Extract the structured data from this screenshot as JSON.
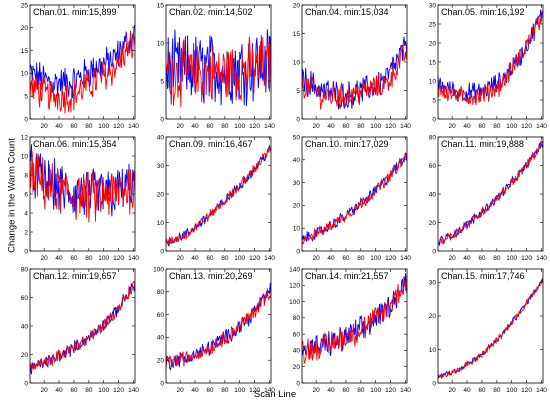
{
  "figure": {
    "ylabel": "Change in the Warm Count",
    "xlabel": "Scan Line"
  },
  "colors": {
    "series_a": "#0000ff",
    "series_b": "#ff0000"
  },
  "chart_data": [
    {
      "type": "line",
      "title": "Chan.01. min:15,899",
      "xlim": [
        1,
        142
      ],
      "ylim": [
        0,
        25
      ],
      "yticks": [
        0,
        5,
        10,
        15,
        20,
        25
      ],
      "series": [
        {
          "color": "#0000ff",
          "shape": "ushape",
          "values": [
            10,
            8,
            8,
            11,
            13,
            19
          ]
        },
        {
          "color": "#ff0000",
          "shape": "ushape",
          "values": [
            7,
            5,
            5,
            8,
            11,
            17
          ]
        }
      ],
      "noise": [
        3.2,
        3.2
      ]
    },
    {
      "type": "line",
      "title": "Chan.02. min:14,502",
      "xlim": [
        1,
        142
      ],
      "ylim": [
        0,
        15
      ],
      "yticks": [
        0,
        5,
        10,
        15
      ],
      "series": [
        {
          "color": "#0000ff",
          "shape": "flat",
          "values": [
            6.5,
            6.5,
            6.5,
            6.5,
            7,
            7.5
          ]
        },
        {
          "color": "#ff0000",
          "shape": "flat",
          "values": [
            6,
            6,
            6,
            6,
            6.5,
            7
          ]
        }
      ],
      "noise": [
        4.2,
        3.6
      ]
    },
    {
      "type": "line",
      "title": "Chan.04. min:15,034",
      "xlim": [
        1,
        142
      ],
      "ylim": [
        0,
        20
      ],
      "yticks": [
        0,
        5,
        10,
        15,
        20
      ],
      "series": [
        {
          "color": "#0000ff",
          "shape": "ushape",
          "values": [
            7,
            5,
            4,
            5,
            7,
            13
          ]
        },
        {
          "color": "#ff0000",
          "shape": "ushape",
          "values": [
            6,
            4,
            4,
            5,
            6,
            12
          ]
        }
      ],
      "noise": [
        2.2,
        2
      ]
    },
    {
      "type": "line",
      "title": "Chan.05. min:16,192",
      "xlim": [
        1,
        142
      ],
      "ylim": [
        0,
        30
      ],
      "yticks": [
        0,
        5,
        10,
        15,
        20,
        25,
        30
      ],
      "series": [
        {
          "color": "#0000ff",
          "shape": "ushape",
          "values": [
            9,
            7,
            7,
            10,
            17,
            28
          ]
        },
        {
          "color": "#ff0000",
          "shape": "ushape",
          "values": [
            8,
            6,
            6,
            9,
            17,
            28
          ]
        }
      ],
      "noise": [
        2.3,
        2.3
      ]
    },
    {
      "type": "line",
      "title": "Chan.06. min:15,354",
      "xlim": [
        1,
        142
      ],
      "ylim": [
        0,
        12
      ],
      "yticks": [
        0,
        2,
        4,
        6,
        8,
        10,
        12
      ],
      "series": [
        {
          "color": "#0000ff",
          "shape": "flat",
          "values": [
            8.5,
            7,
            6,
            6,
            6,
            7
          ]
        },
        {
          "color": "#ff0000",
          "shape": "flat",
          "values": [
            8,
            6.5,
            6,
            5.5,
            6,
            7
          ]
        }
      ],
      "noise": [
        2.4,
        2.4
      ]
    },
    {
      "type": "line",
      "title": "Chan.09. min:16,467",
      "xlim": [
        1,
        142
      ],
      "ylim": [
        0,
        40
      ],
      "yticks": [
        0,
        10,
        20,
        30,
        40
      ],
      "series": [
        {
          "color": "#0000ff",
          "shape": "rise",
          "values": [
            3,
            6,
            12,
            19,
            27,
            36
          ]
        },
        {
          "color": "#ff0000",
          "shape": "rise",
          "values": [
            3,
            6,
            12,
            19,
            27,
            36
          ]
        }
      ],
      "noise": [
        1.6,
        1.6
      ]
    },
    {
      "type": "line",
      "title": "Chan.10. min:17,029",
      "xlim": [
        1,
        142
      ],
      "ylim": [
        0,
        50
      ],
      "yticks": [
        0,
        10,
        20,
        30,
        40,
        50
      ],
      "series": [
        {
          "color": "#0000ff",
          "shape": "rise",
          "values": [
            5,
            9,
            15,
            22,
            31,
            42
          ]
        },
        {
          "color": "#ff0000",
          "shape": "rise",
          "values": [
            5,
            9,
            15,
            22,
            31,
            42
          ]
        }
      ],
      "noise": [
        2.2,
        2.2
      ]
    },
    {
      "type": "line",
      "title": "Chan.11. min:19,888",
      "xlim": [
        1,
        142
      ],
      "ylim": [
        0,
        80
      ],
      "yticks": [
        0,
        20,
        40,
        60,
        80
      ],
      "series": [
        {
          "color": "#0000ff",
          "shape": "rise",
          "values": [
            6,
            14,
            26,
            40,
            56,
            76
          ]
        },
        {
          "color": "#ff0000",
          "shape": "rise",
          "values": [
            6,
            14,
            26,
            40,
            56,
            76
          ]
        }
      ],
      "noise": [
        2.8,
        2.8
      ]
    },
    {
      "type": "line",
      "title": "Chan.12. min:19,657",
      "xlim": [
        1,
        142
      ],
      "ylim": [
        0,
        80
      ],
      "yticks": [
        0,
        20,
        40,
        60,
        80
      ],
      "series": [
        {
          "color": "#0000ff",
          "shape": "rise",
          "values": [
            10,
            16,
            24,
            34,
            48,
            70
          ]
        },
        {
          "color": "#ff0000",
          "shape": "rise",
          "values": [
            10,
            16,
            24,
            34,
            48,
            70
          ]
        }
      ],
      "noise": [
        4,
        4
      ]
    },
    {
      "type": "line",
      "title": "Chan.13. min:20,269",
      "xlim": [
        1,
        142
      ],
      "ylim": [
        0,
        100
      ],
      "yticks": [
        0,
        20,
        40,
        60,
        80,
        100
      ],
      "series": [
        {
          "color": "#0000ff",
          "shape": "rise",
          "values": [
            18,
            22,
            30,
            42,
            58,
            82
          ]
        },
        {
          "color": "#ff0000",
          "shape": "rise",
          "values": [
            18,
            22,
            30,
            42,
            58,
            82
          ]
        }
      ],
      "noise": [
        6,
        6
      ]
    },
    {
      "type": "line",
      "title": "Chan.14. min:21,557",
      "xlim": [
        1,
        142
      ],
      "ylim": [
        0,
        140
      ],
      "yticks": [
        0,
        20,
        40,
        60,
        80,
        100,
        120,
        140
      ],
      "series": [
        {
          "color": "#0000ff",
          "shape": "rise",
          "values": [
            40,
            45,
            55,
            68,
            90,
            125
          ]
        },
        {
          "color": "#ff0000",
          "shape": "rise",
          "values": [
            40,
            45,
            55,
            68,
            90,
            125
          ]
        }
      ],
      "noise": [
        14,
        14
      ]
    },
    {
      "type": "line",
      "title": "Chan.15. min:17,746",
      "xlim": [
        1,
        142
      ],
      "ylim": [
        0,
        34
      ],
      "yticks": [
        0,
        10,
        20,
        30
      ],
      "series": [
        {
          "color": "#0000ff",
          "shape": "rise",
          "values": [
            2,
            4,
            8,
            14,
            22,
            31
          ]
        },
        {
          "color": "#ff0000",
          "shape": "rise",
          "values": [
            2,
            4,
            8,
            14,
            22,
            31
          ]
        }
      ],
      "noise": [
        0.8,
        0.8
      ]
    }
  ],
  "xticks": [
    20,
    40,
    60,
    80,
    100,
    120,
    140
  ]
}
